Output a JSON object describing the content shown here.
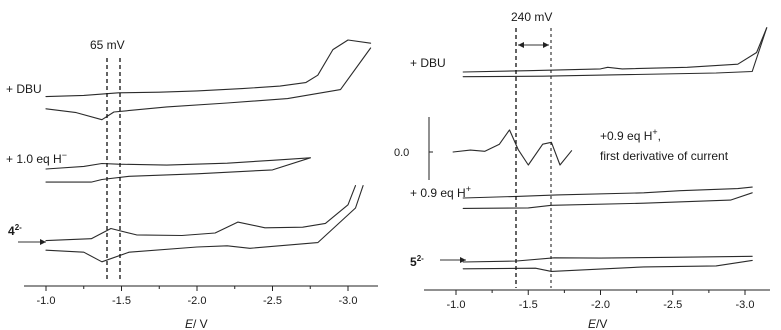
{
  "chart_data": [
    {
      "type": "line",
      "panel": "left",
      "xlabel": "E / V",
      "x_ticks": [
        "-1.0",
        "-1.5",
        "-2.0",
        "-2.5",
        "-3.0"
      ],
      "x_reversed": true,
      "xlim": [
        -0.85,
        -3.2
      ],
      "annotation": "65 mV",
      "dashed_markers": [
        -1.37,
        -1.43
      ],
      "traces": [
        {
          "label": "+ DBU",
          "top": [
            [
              -1.0,
              -0.2
            ],
            [
              -1.25,
              0.2
            ],
            [
              -1.37,
              0.6
            ],
            [
              -1.48,
              1.0
            ],
            [
              -1.75,
              1.2
            ],
            [
              -2.0,
              1.6
            ],
            [
              -2.3,
              2.3
            ],
            [
              -2.55,
              3.1
            ],
            [
              -2.72,
              4.2
            ],
            [
              -2.8,
              6.5
            ],
            [
              -2.9,
              14.5
            ],
            [
              -3.0,
              17.5
            ],
            [
              -3.15,
              16.5
            ]
          ],
          "bottom": [
            [
              -1.0,
              -4.0
            ],
            [
              -1.2,
              -5.2
            ],
            [
              -1.37,
              -7.4
            ],
            [
              -1.45,
              -5.0
            ],
            [
              -1.8,
              -3.4
            ],
            [
              -2.2,
              -2.2
            ],
            [
              -2.6,
              -0.8
            ],
            [
              -2.95,
              2.0
            ],
            [
              -3.15,
              15.0
            ]
          ]
        },
        {
          "label": "+ 1.0 eq H⁻",
          "top": [
            [
              -1.0,
              -0.3
            ],
            [
              -1.25,
              0.5
            ],
            [
              -1.37,
              1.4
            ],
            [
              -1.48,
              1.2
            ],
            [
              -1.8,
              0.9
            ],
            [
              -2.2,
              1.5
            ],
            [
              -2.5,
              2.4
            ],
            [
              -2.75,
              3.2
            ]
          ],
          "bottom": [
            [
              -1.0,
              -4.4
            ],
            [
              -1.3,
              -4.4
            ],
            [
              -1.37,
              -3.6
            ],
            [
              -1.55,
              -2.6
            ],
            [
              -2.0,
              -1.8
            ],
            [
              -2.5,
              -0.6
            ],
            [
              -2.75,
              3.2
            ]
          ]
        },
        {
          "label": "4²⁻",
          "top": [
            [
              -1.0,
              -0.2
            ],
            [
              -1.3,
              0.4
            ],
            [
              -1.43,
              3.6
            ],
            [
              -1.6,
              1.6
            ],
            [
              -1.9,
              1.4
            ],
            [
              -2.12,
              2.2
            ],
            [
              -2.27,
              5.6
            ],
            [
              -2.45,
              3.8
            ],
            [
              -2.7,
              4.0
            ],
            [
              -2.85,
              5.2
            ],
            [
              -3.0,
              11.0
            ],
            [
              -3.05,
              17.0
            ]
          ],
          "bottom": [
            [
              -1.0,
              -3.2
            ],
            [
              -1.25,
              -3.8
            ],
            [
              -1.37,
              -6.8
            ],
            [
              -1.55,
              -3.8
            ],
            [
              -2.0,
              -2.2
            ],
            [
              -2.2,
              -1.8
            ],
            [
              -2.35,
              -2.6
            ],
            [
              -2.8,
              -0.8
            ],
            [
              -3.05,
              10.0
            ],
            [
              -3.1,
              17.0
            ]
          ]
        }
      ]
    },
    {
      "type": "line",
      "panel": "right",
      "xlabel": "E / V",
      "x_ticks": [
        "-1.0",
        "-1.5",
        "-2.0",
        "-2.5",
        "-3.0"
      ],
      "x_reversed": true,
      "xlim": [
        -0.85,
        -3.2
      ],
      "annotation": "240 mV",
      "dashed_markers": [
        -1.42,
        -1.66
      ],
      "inset": {
        "label": "+0.9 eq H⁺, first derivative of current",
        "ytick": "0.0",
        "points": [
          [
            -0.98,
            0.0
          ],
          [
            -1.1,
            0.3
          ],
          [
            -1.2,
            0.1
          ],
          [
            -1.3,
            1.2
          ],
          [
            -1.37,
            3.4
          ],
          [
            -1.43,
            0.4
          ],
          [
            -1.5,
            -2.0
          ],
          [
            -1.6,
            1.2
          ],
          [
            -1.66,
            1.5
          ],
          [
            -1.72,
            -2.0
          ],
          [
            -1.8,
            0.2
          ]
        ]
      },
      "traces": [
        {
          "label": "+ DBU",
          "top": [
            [
              -1.05,
              0.0
            ],
            [
              -1.5,
              0.5
            ],
            [
              -2.0,
              1.2
            ],
            [
              -2.05,
              1.8
            ],
            [
              -2.15,
              1.2
            ],
            [
              -2.6,
              1.8
            ],
            [
              -2.95,
              3.0
            ],
            [
              -3.08,
              7.5
            ],
            [
              -3.15,
              17.0
            ]
          ],
          "bottom": [
            [
              -1.05,
              -1.8
            ],
            [
              -1.6,
              -1.6
            ],
            [
              -2.2,
              -1.0
            ],
            [
              -2.8,
              -0.4
            ],
            [
              -3.05,
              0.2
            ],
            [
              -3.15,
              17.0
            ]
          ]
        },
        {
          "label": "+ 0.9 eq H⁺",
          "top": [
            [
              -1.05,
              0.0
            ],
            [
              -1.42,
              0.6
            ],
            [
              -1.7,
              1.2
            ],
            [
              -2.3,
              2.0
            ],
            [
              -2.55,
              2.8
            ],
            [
              -2.95,
              3.6
            ],
            [
              -3.05,
              4.2
            ]
          ],
          "bottom": [
            [
              -1.05,
              -4.0
            ],
            [
              -1.5,
              -3.8
            ],
            [
              -1.66,
              -2.8
            ],
            [
              -2.3,
              -2.0
            ],
            [
              -2.9,
              -0.8
            ],
            [
              -3.05,
              2.0
            ]
          ]
        },
        {
          "label": "5²⁻",
          "top": [
            [
              -1.05,
              0.0
            ],
            [
              -1.42,
              0.4
            ],
            [
              -1.68,
              1.6
            ],
            [
              -2.0,
              1.5
            ],
            [
              -2.5,
              1.8
            ],
            [
              -3.05,
              2.2
            ]
          ],
          "bottom": [
            [
              -1.05,
              -2.6
            ],
            [
              -1.55,
              -2.4
            ],
            [
              -1.66,
              -3.6
            ],
            [
              -2.3,
              -1.9
            ],
            [
              -2.8,
              -1.5
            ],
            [
              -3.05,
              0.6
            ]
          ]
        }
      ]
    }
  ],
  "text": {
    "left_annotation": "65 mV",
    "right_annotation": "240 mV",
    "left_dbu": "+ DBU",
    "left_h": "+ 1.0 eq H",
    "left_h_sup": "−",
    "left_species": "4",
    "left_species_sup": "2-",
    "right_dbu": "+ DBU",
    "right_h": "+ 0.9 eq H",
    "right_h_sup": "+",
    "right_species": "5",
    "right_species_sup": "2-",
    "inset_line1": "+0.9 eq H",
    "inset_line1_sup": "+",
    "inset_line1_tail": ",",
    "inset_line2": "first derivative of current",
    "inset_ytick": "0.0",
    "xlabel_var": "E",
    "left_xlabel_unit": "/ V",
    "right_xlabel_unit": "/V",
    "ticks": [
      "-1.0",
      "-1.5",
      "-2.0",
      "-2.5",
      "-3.0"
    ]
  }
}
